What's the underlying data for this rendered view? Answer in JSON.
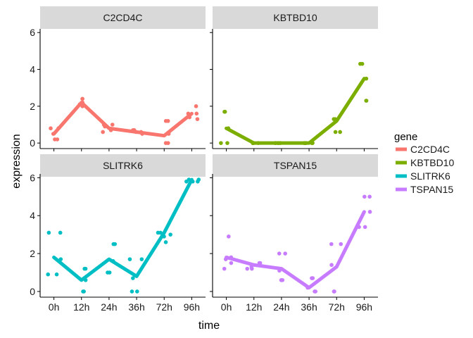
{
  "chart_data": {
    "type": "line",
    "facet_variable": "gene",
    "xlabel": "time",
    "ylabel": "expression",
    "categories": [
      "0h",
      "12h",
      "24h",
      "36h",
      "72h",
      "96h"
    ],
    "ylim": [
      -0.3,
      6.2
    ],
    "yticks": [
      0,
      2,
      4,
      6
    ],
    "legend": {
      "title": "gene",
      "placement": "right"
    },
    "panels": [
      {
        "name": "C2CD4C",
        "color": "#F8766D",
        "line": [
          0.5,
          2.2,
          0.8,
          0.6,
          0.4,
          1.6
        ],
        "points": [
          [
            0,
            0.2
          ],
          [
            0,
            0.2
          ],
          [
            0,
            0.5
          ],
          [
            0,
            0.8
          ],
          [
            0,
            0.8
          ],
          [
            1,
            2.4
          ],
          [
            1,
            2.4
          ],
          [
            1,
            2.2
          ],
          [
            1,
            2.0
          ],
          [
            1,
            2.1
          ],
          [
            2,
            1.0
          ],
          [
            2,
            0.7
          ],
          [
            2,
            1.0
          ],
          [
            2,
            0.6
          ],
          [
            2,
            0.9
          ],
          [
            3,
            0.7
          ],
          [
            3,
            0.6
          ],
          [
            3,
            0.7
          ],
          [
            3,
            0.5
          ],
          [
            3,
            0.6
          ],
          [
            4,
            0.0
          ],
          [
            4,
            0.0
          ],
          [
            4,
            1.2
          ],
          [
            4,
            1.2
          ],
          [
            4,
            0.5
          ],
          [
            5,
            1.3
          ],
          [
            5,
            2.0
          ],
          [
            5,
            1.6
          ],
          [
            5,
            1.6
          ],
          [
            5,
            1.4
          ]
        ]
      },
      {
        "name": "KBTBD10",
        "color": "#7CAE00",
        "line": [
          0.8,
          0.0,
          0.0,
          0.0,
          1.2,
          3.5
        ],
        "points": [
          [
            0,
            1.7
          ],
          [
            0,
            1.7
          ],
          [
            0,
            0.0
          ],
          [
            0,
            0.0
          ],
          [
            0,
            0.8
          ],
          [
            1,
            0.0
          ],
          [
            1,
            0.0
          ],
          [
            1,
            0.0
          ],
          [
            1,
            0.0
          ],
          [
            1,
            0.0
          ],
          [
            2,
            0.0
          ],
          [
            2,
            0.0
          ],
          [
            2,
            0.0
          ],
          [
            2,
            0.0
          ],
          [
            2,
            0.0
          ],
          [
            3,
            0.0
          ],
          [
            3,
            0.0
          ],
          [
            3,
            0.0
          ],
          [
            3,
            0.0
          ],
          [
            3,
            0.0
          ],
          [
            4,
            0.6
          ],
          [
            4,
            0.6
          ],
          [
            4,
            1.3
          ],
          [
            4,
            1.2
          ],
          [
            4,
            1.3
          ],
          [
            5,
            4.3
          ],
          [
            5,
            4.3
          ],
          [
            5,
            3.5
          ],
          [
            5,
            2.3
          ],
          [
            5,
            2.3
          ]
        ]
      },
      {
        "name": "SLITRK6",
        "color": "#00BFC4",
        "line": [
          1.8,
          0.6,
          1.7,
          0.8,
          3.1,
          5.9
        ],
        "points": [
          [
            0,
            3.1
          ],
          [
            0,
            3.1
          ],
          [
            0,
            0.9
          ],
          [
            0,
            0.9
          ],
          [
            0,
            1.7
          ],
          [
            1,
            1.2
          ],
          [
            1,
            1.2
          ],
          [
            1,
            0.0
          ],
          [
            1,
            0.0
          ],
          [
            1,
            0.6
          ],
          [
            2,
            2.5
          ],
          [
            2,
            2.5
          ],
          [
            2,
            1.0
          ],
          [
            2,
            1.0
          ],
          [
            2,
            1.6
          ],
          [
            3,
            0.0
          ],
          [
            3,
            0.0
          ],
          [
            3,
            1.7
          ],
          [
            3,
            1.7
          ],
          [
            3,
            0.7
          ],
          [
            4,
            2.6
          ],
          [
            4,
            3.1
          ],
          [
            4,
            3.0
          ],
          [
            4,
            3.1
          ],
          [
            4,
            2.9
          ],
          [
            5,
            5.8
          ],
          [
            5,
            5.9
          ],
          [
            5,
            5.8
          ],
          [
            5,
            5.9
          ],
          [
            5,
            5.8
          ]
        ]
      },
      {
        "name": "TSPAN15",
        "color": "#C77CFF",
        "line": [
          1.8,
          1.4,
          1.2,
          0.2,
          1.3,
          4.2
        ],
        "points": [
          [
            0,
            2.9
          ],
          [
            0,
            1.5
          ],
          [
            0,
            1.2
          ],
          [
            0,
            1.8
          ],
          [
            0,
            1.7
          ],
          [
            1,
            1.5
          ],
          [
            1,
            1.2
          ],
          [
            1,
            1.3
          ],
          [
            1,
            1.2
          ],
          [
            1,
            1.5
          ],
          [
            2,
            2.0
          ],
          [
            2,
            2.0
          ],
          [
            2,
            0.6
          ],
          [
            2,
            0.6
          ],
          [
            2,
            1.1
          ],
          [
            3,
            0.7
          ],
          [
            3,
            0.0
          ],
          [
            3,
            0.0
          ],
          [
            3,
            0.7
          ],
          [
            3,
            0.2
          ],
          [
            4,
            2.5
          ],
          [
            4,
            2.5
          ],
          [
            4,
            1.4
          ],
          [
            4,
            0.0
          ],
          [
            4,
            0.0
          ],
          [
            5,
            5.0
          ],
          [
            5,
            5.0
          ],
          [
            5,
            4.2
          ],
          [
            5,
            3.4
          ],
          [
            5,
            3.4
          ]
        ]
      }
    ]
  }
}
